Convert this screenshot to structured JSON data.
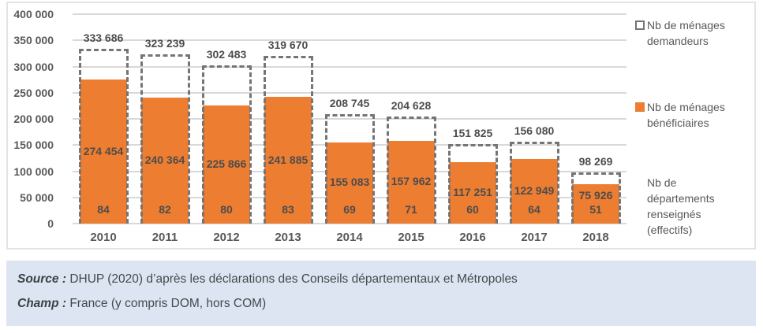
{
  "chart_data": {
    "type": "bar",
    "title": "",
    "xlabel": "",
    "ylabel": "",
    "categories": [
      "2010",
      "2011",
      "2012",
      "2013",
      "2014",
      "2015",
      "2016",
      "2017",
      "2018"
    ],
    "series": [
      {
        "name": "Nb de ménages demandeurs",
        "style": "dashed-outline",
        "color": "#757575",
        "values": [
          333686,
          323239,
          302483,
          319670,
          208745,
          204628,
          151825,
          156080,
          98269
        ],
        "labels": [
          "333 686",
          "323 239",
          "302 483",
          "319 670",
          "208 745",
          "204 628",
          "151 825",
          "156 080",
          "98 269"
        ]
      },
      {
        "name": "Nb de ménages bénéficiaires",
        "style": "filled",
        "color": "#ed7d31",
        "values": [
          274454,
          240364,
          225866,
          241885,
          155083,
          157962,
          117251,
          122949,
          75926
        ],
        "labels": [
          "274 454",
          "240 364",
          "225 866",
          "241 885",
          "155 083",
          "157 962",
          "117 251",
          "122 949",
          "75 926"
        ]
      },
      {
        "name": "Nb de départements renseignés (effectifs)",
        "style": "text-only",
        "values": [
          84,
          82,
          80,
          83,
          69,
          71,
          60,
          64,
          51
        ],
        "labels": [
          "84",
          "82",
          "80",
          "83",
          "69",
          "71",
          "60",
          "64",
          "51"
        ]
      }
    ],
    "ylim": [
      0,
      400000
    ],
    "ytick_step": 50000,
    "ytick_labels": [
      "0",
      "50 000",
      "100 000",
      "150 000",
      "200 000",
      "250 000",
      "300 000",
      "350 000",
      "400 000"
    ],
    "grid": true,
    "legend_position": "right"
  },
  "legend": {
    "items": [
      {
        "label": "Nb de ménages demandeurs",
        "swatch": "dashed"
      },
      {
        "label": "Nb de ménages bénéficiaires",
        "swatch": "orange"
      },
      {
        "label": "Nb de départements renseignés (effectifs)",
        "swatch": "none"
      }
    ]
  },
  "colors": {
    "bar_fill": "#ed7d31",
    "dashed_outline": "#757575",
    "gridline": "#d9d9d9",
    "axis_text": "#595959",
    "data_label_text": "#4d4d4d",
    "footer_background": "#dce5f1"
  },
  "footer": {
    "source_label": "Source :",
    "source_text": "DHUP (2020) d’après les déclarations des Conseils départementaux et Métropoles",
    "champ_label": "Champ :",
    "champ_text": "France (y compris DOM, hors COM)"
  }
}
